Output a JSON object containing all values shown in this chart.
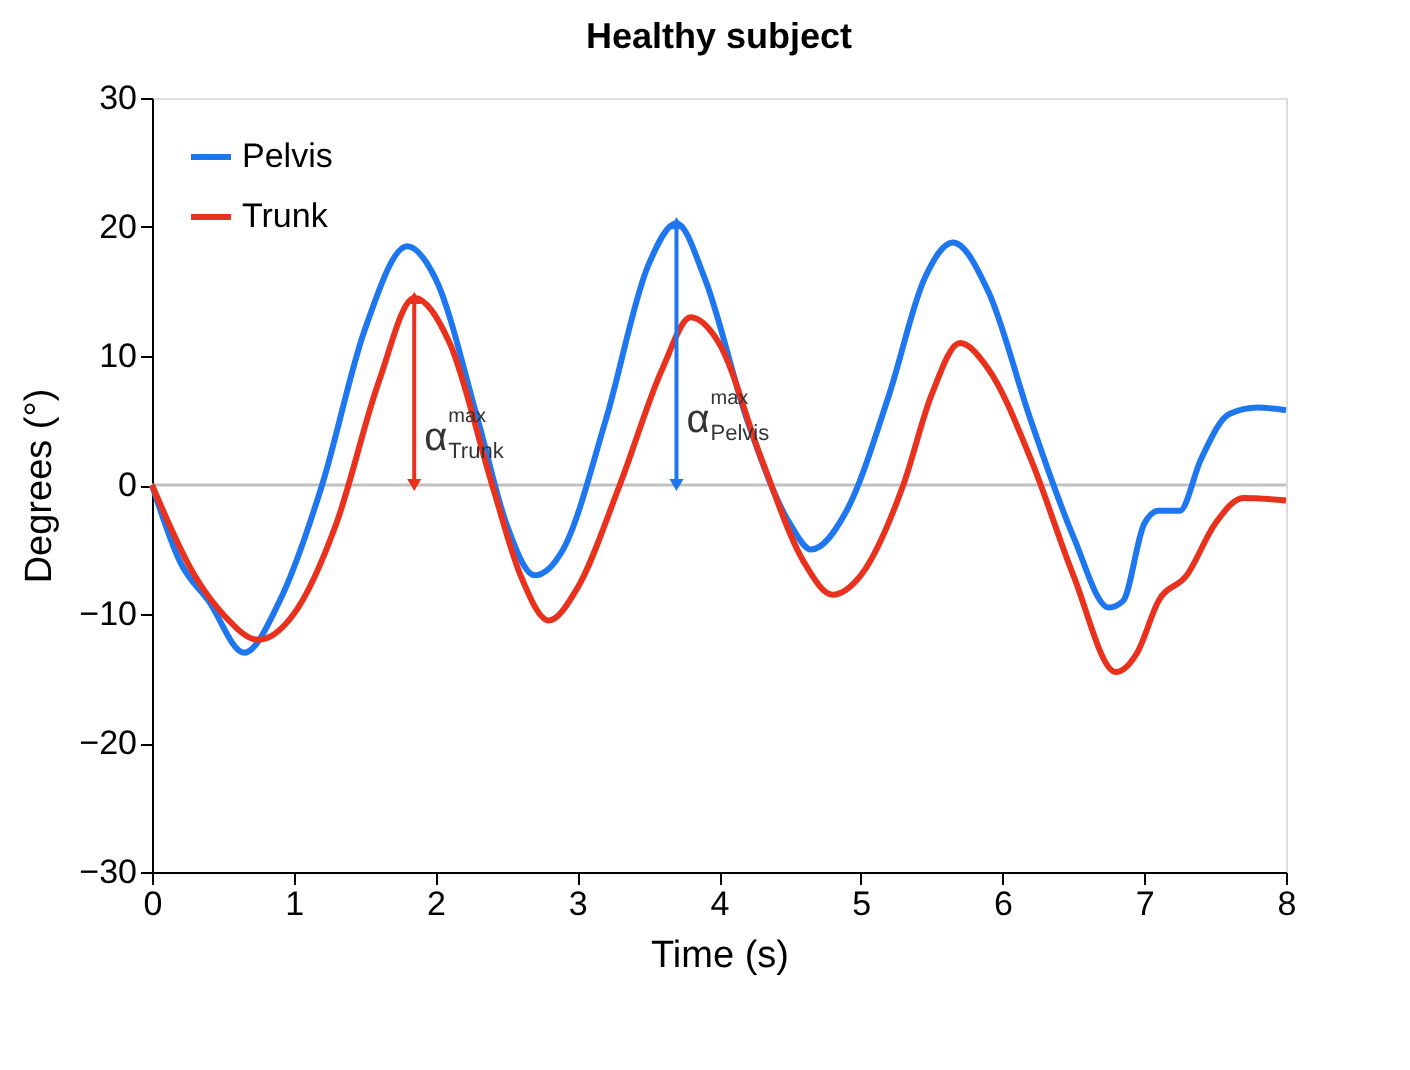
{
  "chart_data": {
    "type": "line",
    "title": "Healthy subject",
    "xlabel": "Time (s)",
    "ylabel": "Degrees (°)",
    "xlim": [
      0,
      8
    ],
    "xticks": [
      0,
      1,
      2,
      3,
      4,
      5,
      6,
      7,
      8
    ],
    "ylim": [
      -30,
      30
    ],
    "yticks": [
      -30,
      -20,
      -10,
      0,
      10,
      20,
      30
    ],
    "grid": false,
    "legend": "top left",
    "marker": "none",
    "line_style": "solid",
    "ref_lines": [
      {
        "axis": "y",
        "value": 0,
        "color": "#c0c0c0"
      }
    ],
    "annotations": [
      {
        "text": "α$^{max}$$_{Trunk}$",
        "x": 1.85,
        "y": 14.5
      },
      {
        "text": "α$^{max}$$_{Pelvis}$",
        "x": 3.7,
        "y": 20.3
      }
    ],
    "series": [
      {
        "name": "Pelvis",
        "color": "#1f77f0",
        "x": [
          0,
          0.2,
          0.4,
          0.65,
          0.9,
          1.2,
          1.5,
          1.8,
          2.0,
          2.3,
          2.5,
          2.7,
          2.9,
          3.2,
          3.5,
          3.7,
          3.9,
          4.2,
          4.5,
          4.65,
          4.9,
          5.2,
          5.45,
          5.65,
          5.9,
          6.2,
          6.5,
          6.75,
          6.85,
          7.0,
          7.1,
          7.25,
          7.4,
          7.6,
          7.8,
          8.0
        ],
        "values": [
          0,
          -6,
          -9,
          -13,
          -9,
          0,
          12,
          18.5,
          16,
          5,
          -3,
          -7,
          -5,
          5,
          17,
          20.3,
          16,
          5,
          -3,
          -5,
          -2,
          7,
          16,
          18.8,
          15,
          5,
          -4,
          -9.5,
          -9,
          -3,
          -2,
          -2,
          2,
          5.5,
          6,
          5.8
        ]
      },
      {
        "name": "Trunk",
        "color": "#e8321e",
        "x": [
          0,
          0.3,
          0.5,
          0.75,
          1.0,
          1.3,
          1.6,
          1.85,
          2.1,
          2.4,
          2.6,
          2.8,
          3.0,
          3.3,
          3.6,
          3.8,
          4.0,
          4.3,
          4.6,
          4.8,
          5.0,
          5.3,
          5.5,
          5.7,
          5.9,
          6.2,
          6.5,
          6.8,
          6.95,
          7.1,
          7.3,
          7.5,
          7.7,
          8.0
        ],
        "values": [
          0,
          -7,
          -10,
          -12,
          -10,
          -3,
          8,
          14.5,
          11,
          0,
          -7,
          -10.5,
          -8,
          0,
          9,
          13,
          11,
          2,
          -6,
          -8.5,
          -7,
          0,
          7,
          11,
          9,
          2,
          -7,
          -14.5,
          -13,
          -9,
          -7,
          -3,
          -1,
          -1.2
        ]
      }
    ]
  }
}
